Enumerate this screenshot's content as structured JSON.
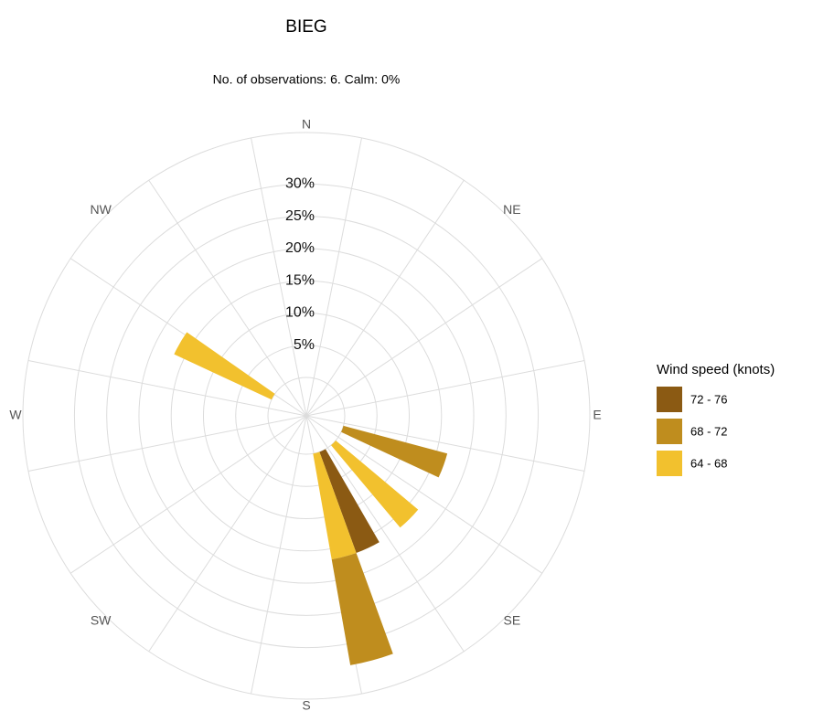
{
  "chart_data": {
    "type": "windrose",
    "title": "BIEG",
    "subtitle": "No. of observations: 6. Calm: 0%",
    "legend_title": "Wind speed (knots)",
    "direction_labels": [
      "N",
      "NE",
      "E",
      "SE",
      "S",
      "SW",
      "W",
      "NW"
    ],
    "directions": [
      110,
      135,
      155,
      165,
      300
    ],
    "series": [
      {
        "name": "64 - 68",
        "color": "#f2c12e",
        "values": [
          null,
          16.67,
          null,
          16.67,
          16.67
        ]
      },
      {
        "name": "68 - 72",
        "color": "#bf8d1e",
        "values": [
          16.67,
          null,
          null,
          16.67,
          null
        ]
      },
      {
        "name": "72 - 76",
        "color": "#8b5a13",
        "values": [
          null,
          null,
          16.67,
          null,
          null
        ]
      }
    ],
    "ylim": [
      0,
      38
    ],
    "yticks": [
      {
        "value": 5,
        "label": "5%"
      },
      {
        "value": 10,
        "label": "10%"
      },
      {
        "value": 15,
        "label": "15%"
      },
      {
        "value": 20,
        "label": "20%"
      },
      {
        "value": 25,
        "label": "25%"
      },
      {
        "value": 30,
        "label": "30%"
      }
    ],
    "grid": true
  }
}
